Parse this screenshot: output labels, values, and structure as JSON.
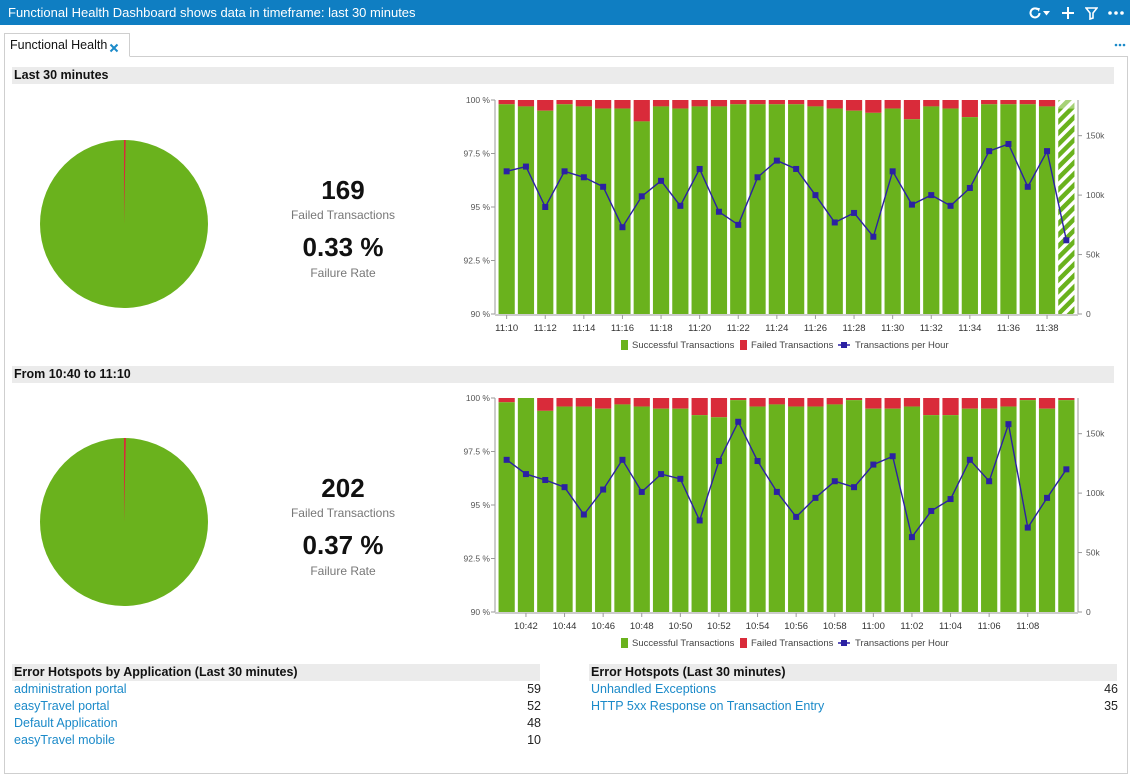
{
  "titlebar": {
    "title": "Functional Health Dashboard shows data in timeframe: last 30 minutes",
    "bg_color": "#0f7ec2",
    "icons": [
      "refresh-icon",
      "chevron-down-icon",
      "plus-icon",
      "filter-icon",
      "more-icon"
    ]
  },
  "tab": {
    "label": "Functional Health"
  },
  "colors": {
    "success": "#6ab21d",
    "failed": "#d92b3a",
    "line": "#2b21a3",
    "link": "#1b8ac9"
  },
  "sections": [
    {
      "header": "Last 30 minutes",
      "failed_count": "169",
      "failed_label": "Failed Transactions",
      "rate": "0.33 %",
      "rate_label": "Failure Rate"
    },
    {
      "header": "From 10:40 to 11:10",
      "failed_count": "202",
      "failed_label": "Failed Transactions",
      "rate": "0.37 %",
      "rate_label": "Failure Rate"
    }
  ],
  "chart_data": [
    {
      "type": "bar",
      "title": "Last 30 minutes",
      "ylim": [
        90,
        100
      ],
      "yticks": [
        "90 %",
        "92.5 %",
        "95 %",
        "97.5 %",
        "100 %"
      ],
      "y2lim": [
        0,
        180000
      ],
      "y2ticks": [
        "0",
        "50k",
        "100k",
        "150k"
      ],
      "xticks": [
        "11:10",
        "11:12",
        "11:14",
        "11:16",
        "11:18",
        "11:20",
        "11:22",
        "11:24",
        "11:26",
        "11:28",
        "11:30",
        "11:32",
        "11:34",
        "11:36",
        "11:38"
      ],
      "legend": [
        "Successful Transactions",
        "Failed Transactions",
        "Transactions per Hour"
      ],
      "legend_position": "bottom",
      "success_pct": [
        99.8,
        99.7,
        99.5,
        99.8,
        99.7,
        99.6,
        99.6,
        99.0,
        99.7,
        99.6,
        99.7,
        99.7,
        99.8,
        99.8,
        99.8,
        99.8,
        99.7,
        99.6,
        99.5,
        99.4,
        99.6,
        99.1,
        99.7,
        99.6,
        99.2,
        99.8,
        99.8,
        99.8,
        99.7,
        99.6
      ],
      "tph": [
        120000,
        124000,
        90000,
        120000,
        115000,
        107000,
        73000,
        99000,
        112000,
        91000,
        122000,
        86000,
        75000,
        115000,
        129000,
        122000,
        100000,
        77000,
        85000,
        65000,
        120000,
        92000,
        100000,
        91000,
        106000,
        137000,
        143000,
        107000,
        137000,
        62000
      ],
      "last_bar_partial": true
    },
    {
      "type": "bar",
      "title": "From 10:40 to 11:10",
      "ylim": [
        90,
        100
      ],
      "yticks": [
        "90 %",
        "92.5 %",
        "95 %",
        "97.5 %",
        "100 %"
      ],
      "y2lim": [
        0,
        180000
      ],
      "y2ticks": [
        "0",
        "50k",
        "100k",
        "150k"
      ],
      "xticks": [
        "10:42",
        "10:44",
        "10:46",
        "10:48",
        "10:50",
        "10:52",
        "10:54",
        "10:56",
        "10:58",
        "11:00",
        "11:02",
        "11:04",
        "11:06",
        "11:08"
      ],
      "legend": [
        "Successful Transactions",
        "Failed Transactions",
        "Transactions per Hour"
      ],
      "legend_position": "bottom",
      "success_pct": [
        99.8,
        100,
        99.4,
        99.6,
        99.6,
        99.5,
        99.7,
        99.6,
        99.5,
        99.5,
        99.2,
        99.1,
        99.9,
        99.6,
        99.7,
        99.6,
        99.6,
        99.7,
        99.9,
        99.5,
        99.5,
        99.6,
        99.2,
        99.2,
        99.5,
        99.5,
        99.6,
        99.9,
        99.5,
        99.9
      ],
      "tph": [
        128000,
        116000,
        111000,
        105000,
        82000,
        103000,
        128000,
        101000,
        116000,
        112000,
        77000,
        127000,
        160000,
        127000,
        101000,
        80000,
        96000,
        110000,
        105000,
        124000,
        131000,
        63000,
        85000,
        95000,
        128000,
        110000,
        158000,
        71000,
        96000,
        120000
      ],
      "last_bar_partial": false
    }
  ],
  "hotspots_app": {
    "header": "Error Hotspots by Application (Last 30 minutes)",
    "rows": [
      {
        "name": "administration portal",
        "count": "59"
      },
      {
        "name": "easyTravel portal",
        "count": "52"
      },
      {
        "name": "Default Application",
        "count": "48"
      },
      {
        "name": "easyTravel mobile",
        "count": "10"
      }
    ]
  },
  "hotspots_err": {
    "header": "Error Hotspots (Last 30 minutes)",
    "rows": [
      {
        "name": "Unhandled Exceptions",
        "count": "46"
      },
      {
        "name": "HTTP 5xx Response on Transaction Entry",
        "count": "35"
      }
    ]
  }
}
